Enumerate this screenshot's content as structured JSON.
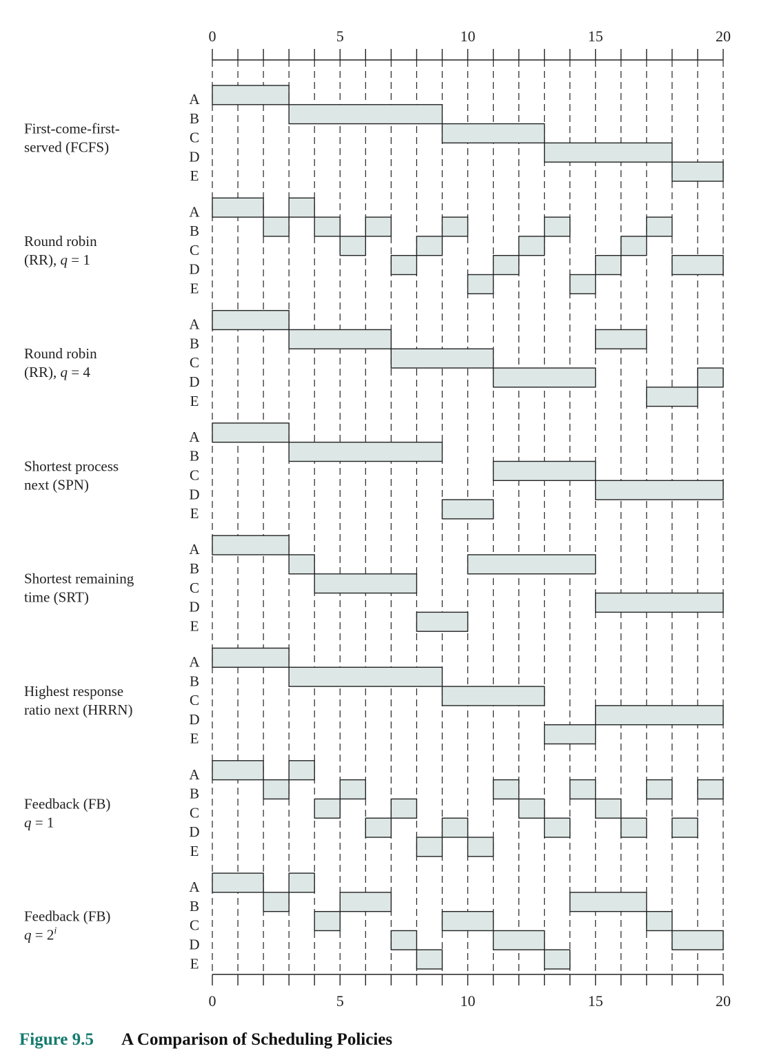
{
  "axis": {
    "tick_labels": [
      "0",
      "5",
      "10",
      "15",
      "20"
    ],
    "range": [
      0,
      20
    ]
  },
  "processes": [
    "A",
    "B",
    "C",
    "D",
    "E"
  ],
  "policies": [
    {
      "lines": [
        "First-come-first-",
        "served (FCFS)"
      ],
      "segments": [
        [
          "A",
          0,
          3
        ],
        [
          "B",
          3,
          9
        ],
        [
          "C",
          9,
          13
        ],
        [
          "D",
          13,
          18
        ],
        [
          "E",
          18,
          20
        ]
      ]
    },
    {
      "lines": [
        "Round robin",
        "(RR), |q| = 1"
      ],
      "segments": [
        [
          "A",
          0,
          2
        ],
        [
          "A",
          3,
          4
        ],
        [
          "B",
          2,
          3
        ],
        [
          "B",
          4,
          5
        ],
        [
          "B",
          6,
          7
        ],
        [
          "B",
          9,
          10
        ],
        [
          "B",
          13,
          14
        ],
        [
          "B",
          17,
          18
        ],
        [
          "C",
          5,
          6
        ],
        [
          "C",
          8,
          9
        ],
        [
          "C",
          12,
          13
        ],
        [
          "C",
          16,
          17
        ],
        [
          "D",
          7,
          8
        ],
        [
          "D",
          11,
          12
        ],
        [
          "D",
          15,
          16
        ],
        [
          "D",
          18,
          20
        ],
        [
          "E",
          10,
          11
        ],
        [
          "E",
          14,
          15
        ]
      ]
    },
    {
      "lines": [
        "Round robin",
        "(RR), |q| = 4"
      ],
      "segments": [
        [
          "A",
          0,
          3
        ],
        [
          "B",
          3,
          7
        ],
        [
          "B",
          15,
          17
        ],
        [
          "C",
          7,
          11
        ],
        [
          "D",
          11,
          15
        ],
        [
          "D",
          19,
          20
        ],
        [
          "E",
          17,
          19
        ]
      ]
    },
    {
      "lines": [
        "Shortest process",
        "next (SPN)"
      ],
      "segments": [
        [
          "A",
          0,
          3
        ],
        [
          "B",
          3,
          9
        ],
        [
          "C",
          11,
          15
        ],
        [
          "D",
          15,
          20
        ],
        [
          "E",
          9,
          11
        ]
      ]
    },
    {
      "lines": [
        "Shortest remaining",
        "time (SRT)"
      ],
      "segments": [
        [
          "A",
          0,
          3
        ],
        [
          "B",
          3,
          4
        ],
        [
          "B",
          10,
          15
        ],
        [
          "C",
          4,
          8
        ],
        [
          "D",
          15,
          20
        ],
        [
          "E",
          8,
          10
        ]
      ]
    },
    {
      "lines": [
        "Highest response",
        "ratio next (HRRN)"
      ],
      "segments": [
        [
          "A",
          0,
          3
        ],
        [
          "B",
          3,
          9
        ],
        [
          "C",
          9,
          13
        ],
        [
          "D",
          15,
          20
        ],
        [
          "E",
          13,
          15
        ]
      ]
    },
    {
      "lines": [
        "Feedback (FB)",
        "|q| = 1"
      ],
      "segments": [
        [
          "A",
          0,
          2
        ],
        [
          "A",
          3,
          4
        ],
        [
          "B",
          2,
          3
        ],
        [
          "B",
          5,
          6
        ],
        [
          "B",
          11,
          12
        ],
        [
          "B",
          14,
          15
        ],
        [
          "B",
          17,
          18
        ],
        [
          "B",
          19,
          20
        ],
        [
          "C",
          4,
          5
        ],
        [
          "C",
          7,
          8
        ],
        [
          "C",
          12,
          13
        ],
        [
          "C",
          15,
          16
        ],
        [
          "D",
          6,
          7
        ],
        [
          "D",
          9,
          10
        ],
        [
          "D",
          13,
          14
        ],
        [
          "D",
          16,
          17
        ],
        [
          "D",
          18,
          19
        ],
        [
          "E",
          8,
          9
        ],
        [
          "E",
          10,
          11
        ]
      ]
    },
    {
      "lines": [
        "Feedback (FB)",
        "|q| = 2^i"
      ],
      "segments": [
        [
          "A",
          0,
          2
        ],
        [
          "A",
          3,
          4
        ],
        [
          "B",
          2,
          3
        ],
        [
          "B",
          5,
          7
        ],
        [
          "B",
          14,
          17
        ],
        [
          "C",
          4,
          5
        ],
        [
          "C",
          9,
          11
        ],
        [
          "C",
          17,
          18
        ],
        [
          "D",
          7,
          8
        ],
        [
          "D",
          11,
          13
        ],
        [
          "D",
          18,
          20
        ],
        [
          "E",
          8,
          9
        ],
        [
          "E",
          13,
          14
        ]
      ]
    }
  ],
  "caption": {
    "number": "Figure 9.5",
    "title": "A Comparison of Scheduling Policies"
  },
  "colors": {
    "bar_fill": "#dde8e6",
    "line": "#222222",
    "caption_number": "#147a6e"
  }
}
